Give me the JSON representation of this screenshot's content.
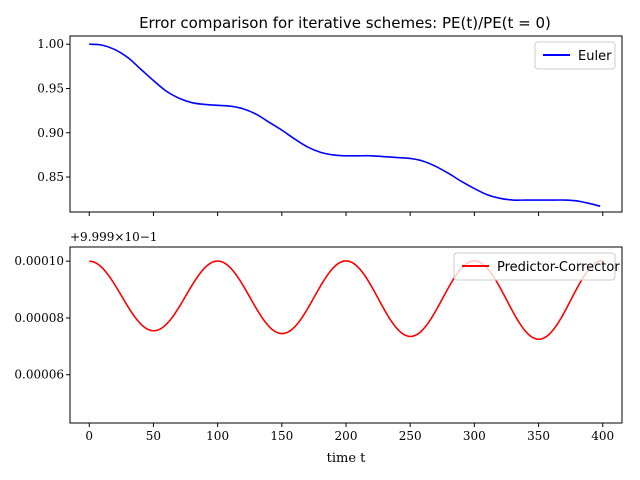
{
  "figure": {
    "title": "Error comparison for iterative schemes:  PE(t)/PE(t = 0)"
  },
  "chart_data": [
    {
      "type": "line",
      "xlim": [
        -15,
        415
      ],
      "ylim": [
        0.8105,
        1.0093
      ],
      "xticks": [
        0,
        50,
        100,
        150,
        200,
        250,
        300,
        350,
        400
      ],
      "yticks": [
        0.85,
        0.9,
        0.95,
        1.0
      ],
      "ytick_labels": [
        "0.85",
        "0.90",
        "0.95",
        "1.00"
      ],
      "legend_position": "top-right",
      "series": [
        {
          "name": "Euler",
          "color": "#0000ff",
          "x": [
            0,
            10,
            20,
            30,
            40,
            50,
            60,
            70,
            80,
            90,
            100,
            110,
            120,
            130,
            140,
            150,
            160,
            170,
            180,
            190,
            200,
            210,
            220,
            230,
            240,
            250,
            260,
            270,
            280,
            290,
            300,
            310,
            320,
            330,
            340,
            350,
            360,
            370,
            380,
            390,
            398
          ],
          "y": [
            1.0,
            0.999,
            0.994,
            0.985,
            0.972,
            0.959,
            0.947,
            0.939,
            0.934,
            0.932,
            0.931,
            0.93,
            0.927,
            0.921,
            0.912,
            0.903,
            0.893,
            0.884,
            0.878,
            0.875,
            0.874,
            0.874,
            0.874,
            0.873,
            0.872,
            0.871,
            0.868,
            0.862,
            0.854,
            0.845,
            0.837,
            0.83,
            0.826,
            0.824,
            0.824,
            0.824,
            0.824,
            0.824,
            0.823,
            0.82,
            0.817
          ]
        }
      ]
    },
    {
      "type": "line",
      "xlim": [
        -15,
        415
      ],
      "ylim": [
        4.3e-05,
        0.000105
      ],
      "xticks": [
        0,
        50,
        100,
        150,
        200,
        250,
        300,
        350,
        400
      ],
      "xtick_labels": [
        "0",
        "50",
        "100",
        "150",
        "200",
        "250",
        "300",
        "350",
        "400"
      ],
      "yticks": [
        6e-05,
        8e-05,
        0.0001
      ],
      "ytick_labels": [
        "0.00006",
        "0.00008",
        "0.00010"
      ],
      "offset_text": "+9.999×10−1",
      "xlabel": "time t",
      "legend_position": "top-right",
      "series": [
        {
          "name": "Predictor-Corrector",
          "color": "#ff0000",
          "amp_start": 2.4e-05,
          "amp_growth": 4.2e-06,
          "period": 100,
          "upper_start": 0.0001,
          "upper_growth": 2e-07,
          "x_start": 0,
          "x_end": 400
        }
      ]
    }
  ]
}
